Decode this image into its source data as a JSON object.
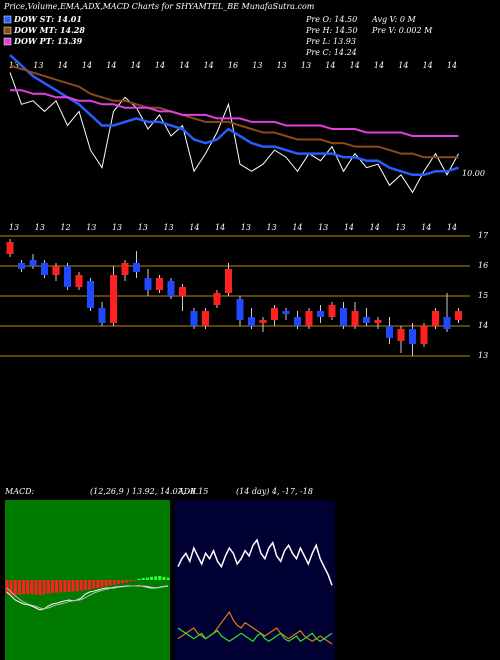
{
  "header": {
    "title": "Price,Volume,EMA,ADX,MACD Charts for SHYAMTEL_BE MunafaSutra.com",
    "info": [
      "Pre  O: 14.50",
      "Pre  H: 14.50",
      "Pre  L: 13.93",
      "Pre  C: 14.24",
      "Avg V: 0  M",
      "Pre  V: 0.002  M"
    ]
  },
  "chart_data": [
    {
      "type": "line",
      "annotation": "10.00",
      "ylim": [
        12.9,
        17.3
      ],
      "x_labels": [
        "13",
        "13",
        "14",
        "14",
        "14",
        "14",
        "14",
        "14",
        "14",
        "16",
        "13",
        "13",
        "13",
        "14",
        "14",
        "14",
        "14",
        "14",
        "14"
      ],
      "series": [
        {
          "name": "DOW ST: 14.01",
          "color": "#2a5cff",
          "values": [
            17.3,
            17.0,
            16.7,
            16.5,
            16.3,
            16.1,
            15.9,
            15.6,
            15.3,
            15.3,
            15.4,
            15.5,
            15.4,
            15.4,
            15.3,
            15.2,
            14.9,
            14.8,
            14.9,
            15.2,
            15.0,
            14.8,
            14.7,
            14.7,
            14.6,
            14.5,
            14.5,
            14.5,
            14.5,
            14.4,
            14.4,
            14.3,
            14.3,
            14.1,
            14.0,
            13.9,
            13.9,
            14.0,
            14.0,
            14.1
          ]
        },
        {
          "name": "DOW MT: 14.28",
          "color": "#8b4a1a",
          "values": [
            17.0,
            16.9,
            16.8,
            16.7,
            16.6,
            16.5,
            16.4,
            16.2,
            16.1,
            16.0,
            16.0,
            15.9,
            15.8,
            15.8,
            15.7,
            15.6,
            15.5,
            15.4,
            15.4,
            15.4,
            15.3,
            15.2,
            15.1,
            15.1,
            15.0,
            14.9,
            14.9,
            14.9,
            14.8,
            14.8,
            14.7,
            14.7,
            14.7,
            14.6,
            14.5,
            14.5,
            14.4,
            14.4,
            14.4,
            14.4
          ]
        },
        {
          "name": "DOW PT: 13.39",
          "color": "#e040e0",
          "values": [
            16.3,
            16.3,
            16.2,
            16.2,
            16.1,
            16.1,
            16.0,
            16.0,
            15.9,
            15.9,
            15.8,
            15.8,
            15.8,
            15.7,
            15.7,
            15.6,
            15.6,
            15.6,
            15.5,
            15.5,
            15.5,
            15.4,
            15.4,
            15.4,
            15.3,
            15.3,
            15.3,
            15.3,
            15.2,
            15.2,
            15.2,
            15.1,
            15.1,
            15.1,
            15.1,
            15.0,
            15.0,
            15.0,
            15.0,
            15.0
          ]
        }
      ]
    },
    {
      "type": "candlestick",
      "ylim": [
        12.5,
        17.2
      ],
      "yticks": [
        13,
        14,
        15,
        16,
        17
      ],
      "grid_color": "#b8860b",
      "up_color": "#ff2020",
      "down_color": "#2048ff",
      "x_labels": [
        "13",
        "13",
        "12",
        "13",
        "13",
        "13",
        "13",
        "14",
        "14",
        "13",
        "13",
        "14",
        "13",
        "14",
        "14",
        "13",
        "14",
        "14"
      ],
      "open": [
        16.4,
        16.1,
        16.2,
        16.1,
        15.7,
        16.0,
        15.3,
        15.5,
        14.6,
        14.1,
        15.7,
        16.1,
        15.6,
        15.2,
        15.5,
        15.0,
        14.5,
        14.0,
        14.7,
        15.1,
        14.9,
        14.3,
        14.1,
        14.2,
        14.5,
        14.3,
        14.0,
        14.5,
        14.3,
        14.6,
        14.0,
        14.3,
        14.1,
        14.0,
        13.5,
        13.9,
        13.4,
        14.0,
        14.3,
        14.2
      ],
      "high": [
        16.9,
        16.2,
        16.4,
        16.2,
        16.1,
        16.1,
        15.8,
        15.6,
        14.8,
        16.0,
        16.2,
        16.5,
        15.9,
        15.7,
        15.6,
        15.4,
        14.6,
        14.6,
        15.2,
        16.1,
        15.0,
        14.6,
        14.3,
        14.7,
        14.6,
        14.5,
        14.6,
        14.7,
        14.8,
        14.8,
        14.8,
        14.6,
        14.3,
        14.3,
        14.0,
        14.1,
        14.1,
        14.6,
        15.1,
        14.6
      ],
      "low": [
        16.3,
        15.8,
        15.9,
        15.6,
        15.5,
        15.2,
        15.2,
        14.5,
        14.0,
        14.0,
        15.5,
        15.6,
        15.0,
        15.1,
        14.9,
        14.5,
        13.9,
        13.9,
        14.6,
        15.0,
        14.0,
        13.9,
        13.8,
        14.0,
        14.2,
        13.9,
        13.9,
        14.1,
        14.2,
        13.9,
        13.9,
        14.0,
        13.9,
        13.4,
        13.1,
        13.0,
        13.3,
        13.9,
        13.8,
        14.1
      ],
      "close": [
        16.8,
        15.9,
        16.0,
        15.7,
        16.0,
        15.3,
        15.7,
        14.6,
        14.1,
        15.7,
        16.1,
        15.8,
        15.2,
        15.6,
        15.0,
        15.3,
        14.0,
        14.5,
        15.1,
        15.9,
        14.2,
        14.0,
        14.2,
        14.6,
        14.4,
        14.0,
        14.5,
        14.3,
        14.7,
        14.0,
        14.5,
        14.1,
        14.2,
        13.6,
        13.9,
        13.4,
        14.0,
        14.5,
        13.9,
        14.5
      ]
    },
    {
      "type": "macd",
      "title": "MACD:",
      "subtitle": "(12,26,9 ) 13.92, 14.07, -0.15",
      "ylim": [
        -2,
        2
      ],
      "background": "#007a00",
      "hist_color": "#ff2020",
      "histogram": [
        -0.35,
        -0.36,
        -0.38,
        -0.37,
        -0.36,
        -0.35,
        -0.36,
        -0.37,
        -0.38,
        -0.36,
        -0.34,
        -0.33,
        -0.32,
        -0.31,
        -0.3,
        -0.3,
        -0.29,
        -0.28,
        -0.27,
        -0.25,
        -0.24,
        -0.22,
        -0.2,
        -0.18,
        -0.16,
        -0.14,
        -0.12,
        -0.1,
        -0.08,
        -0.06,
        -0.04,
        -0.02,
        0.03,
        0.05,
        0.06,
        0.08,
        0.09,
        0.1,
        0.08,
        0.06
      ],
      "series": [
        {
          "color": "#ffffff",
          "values": [
            -0.3,
            -0.4,
            -0.5,
            -0.55,
            -0.6,
            -0.62,
            -0.65,
            -0.7,
            -0.75,
            -0.72,
            -0.65,
            -0.6,
            -0.58,
            -0.55,
            -0.52,
            -0.5,
            -0.52,
            -0.5,
            -0.45,
            -0.35,
            -0.3,
            -0.28,
            -0.25,
            -0.22,
            -0.2,
            -0.2,
            -0.18,
            -0.17,
            -0.16,
            -0.15,
            -0.15,
            -0.15,
            -0.14,
            -0.16,
            -0.18,
            -0.2,
            -0.2,
            -0.18,
            -0.16,
            -0.15
          ]
        },
        {
          "color": "#bbbbbb",
          "values": [
            -0.2,
            -0.3,
            -0.4,
            -0.48,
            -0.55,
            -0.6,
            -0.63,
            -0.66,
            -0.7,
            -0.72,
            -0.7,
            -0.66,
            -0.62,
            -0.6,
            -0.57,
            -0.54,
            -0.52,
            -0.51,
            -0.49,
            -0.44,
            -0.38,
            -0.33,
            -0.29,
            -0.26,
            -0.23,
            -0.21,
            -0.2,
            -0.18,
            -0.17,
            -0.16,
            -0.15,
            -0.15,
            -0.15,
            -0.15,
            -0.16,
            -0.18,
            -0.19,
            -0.19,
            -0.17,
            -0.16
          ]
        }
      ]
    },
    {
      "type": "adx",
      "title": "ADX",
      "subtitle": "(14 day) 4, -17, -18",
      "ylim": [
        0,
        60
      ],
      "background": "#000033",
      "series": [
        {
          "color": "#ffffff",
          "values": [
            35,
            38,
            40,
            37,
            42,
            39,
            36,
            40,
            38,
            41,
            37,
            35,
            39,
            42,
            40,
            36,
            38,
            41,
            39,
            43,
            45,
            40,
            38,
            42,
            44,
            39,
            37,
            41,
            43,
            40,
            38,
            42,
            39,
            36,
            40,
            43,
            38,
            35,
            32,
            28
          ]
        },
        {
          "color": "#e07a10",
          "values": [
            8,
            9,
            10,
            11,
            12,
            10,
            9,
            8,
            9,
            10,
            12,
            14,
            16,
            18,
            15,
            13,
            12,
            14,
            13,
            12,
            11,
            10,
            9,
            10,
            11,
            12,
            10,
            9,
            8,
            9,
            10,
            11,
            9,
            8,
            7,
            8,
            9,
            8,
            7,
            6
          ]
        },
        {
          "color": "#30e030",
          "values": [
            12,
            11,
            10,
            9,
            8,
            9,
            10,
            8,
            9,
            10,
            11,
            9,
            8,
            7,
            8,
            9,
            10,
            9,
            8,
            7,
            9,
            10,
            8,
            7,
            8,
            9,
            10,
            8,
            7,
            8,
            9,
            7,
            8,
            9,
            10,
            8,
            7,
            8,
            9,
            10
          ]
        }
      ]
    }
  ]
}
